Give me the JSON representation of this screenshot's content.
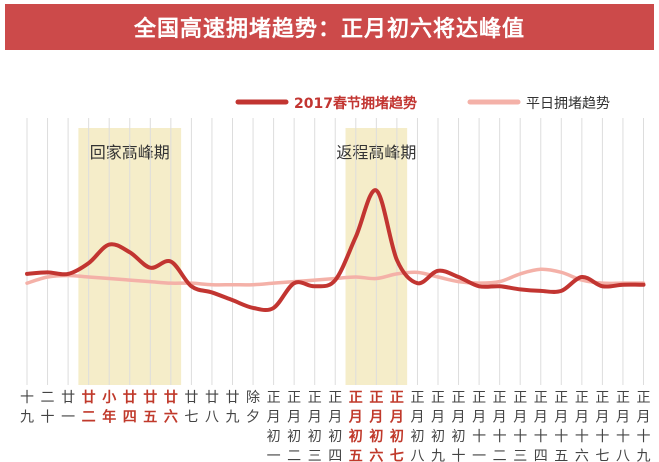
{
  "title": "全国高速拥堵趋势：正月初六将达峰值",
  "colors": {
    "title_bg": "#cc4a4a",
    "series_2017": "#c23531",
    "series_normal": "#f4b1a8",
    "highlight_band": "#f5edc9",
    "highlight_tick": "#c0392b",
    "grid": "#dddddd"
  },
  "chart_data": {
    "type": "line",
    "title": "全国高速拥堵趋势：正月初六将达峰值",
    "xlabel": "",
    "ylabel": "",
    "grid": "vertical",
    "legend_position": "top-right",
    "categories": [
      {
        "lines": [
          "十",
          "九",
          ""
        ],
        "highlight": false
      },
      {
        "lines": [
          "二",
          "十",
          ""
        ],
        "highlight": false
      },
      {
        "lines": [
          "廿",
          "一",
          ""
        ],
        "highlight": false
      },
      {
        "lines": [
          "廿",
          "二",
          ""
        ],
        "highlight": true
      },
      {
        "lines": [
          "小",
          "年",
          ""
        ],
        "highlight": true
      },
      {
        "lines": [
          "廿",
          "四",
          ""
        ],
        "highlight": true
      },
      {
        "lines": [
          "廿",
          "五",
          ""
        ],
        "highlight": true
      },
      {
        "lines": [
          "廿",
          "六",
          ""
        ],
        "highlight": true
      },
      {
        "lines": [
          "廿",
          "七",
          ""
        ],
        "highlight": false
      },
      {
        "lines": [
          "廿",
          "八",
          ""
        ],
        "highlight": false
      },
      {
        "lines": [
          "廿",
          "九",
          ""
        ],
        "highlight": false
      },
      {
        "lines": [
          "除",
          "夕",
          ""
        ],
        "highlight": false
      },
      {
        "lines": [
          "正",
          "月",
          "初",
          "一"
        ],
        "highlight": false
      },
      {
        "lines": [
          "正",
          "月",
          "初",
          "二"
        ],
        "highlight": false
      },
      {
        "lines": [
          "正",
          "月",
          "初",
          "三"
        ],
        "highlight": false
      },
      {
        "lines": [
          "正",
          "月",
          "初",
          "四"
        ],
        "highlight": false
      },
      {
        "lines": [
          "正",
          "月",
          "初",
          "五"
        ],
        "highlight": true
      },
      {
        "lines": [
          "正",
          "月",
          "初",
          "六"
        ],
        "highlight": true
      },
      {
        "lines": [
          "正",
          "月",
          "初",
          "七"
        ],
        "highlight": true
      },
      {
        "lines": [
          "正",
          "月",
          "初",
          "八"
        ],
        "highlight": false
      },
      {
        "lines": [
          "正",
          "月",
          "初",
          "九"
        ],
        "highlight": false
      },
      {
        "lines": [
          "正",
          "月",
          "初",
          "十"
        ],
        "highlight": false
      },
      {
        "lines": [
          "正",
          "月",
          "十",
          "一"
        ],
        "highlight": false
      },
      {
        "lines": [
          "正",
          "月",
          "十",
          "二"
        ],
        "highlight": false
      },
      {
        "lines": [
          "正",
          "月",
          "十",
          "三"
        ],
        "highlight": false
      },
      {
        "lines": [
          "正",
          "月",
          "十",
          "四"
        ],
        "highlight": false
      },
      {
        "lines": [
          "正",
          "月",
          "十",
          "五"
        ],
        "highlight": false
      },
      {
        "lines": [
          "正",
          "月",
          "十",
          "六"
        ],
        "highlight": false
      },
      {
        "lines": [
          "正",
          "月",
          "十",
          "七"
        ],
        "highlight": false
      },
      {
        "lines": [
          "正",
          "月",
          "十",
          "八"
        ],
        "highlight": false
      },
      {
        "lines": [
          "正",
          "月",
          "十",
          "九"
        ],
        "highlight": false
      }
    ],
    "bands": [
      {
        "label": "回家高峰期",
        "from": 3,
        "to": 7
      },
      {
        "label": "返程高峰期",
        "from": 16,
        "to": 18
      }
    ],
    "series": [
      {
        "name": "2017春节拥堵趋势",
        "color": "#c23531",
        "values": [
          46,
          47,
          46,
          53,
          65,
          60,
          50,
          54,
          38,
          34,
          29,
          24,
          24,
          40,
          38,
          42,
          70,
          100,
          55,
          40,
          48,
          44,
          38,
          38,
          36,
          35,
          35,
          44,
          38,
          39,
          39
        ]
      },
      {
        "name": "平日拥堵趋势",
        "color": "#f4b1a8",
        "values": [
          40,
          44,
          45,
          44,
          43,
          42,
          41,
          40,
          40,
          39,
          39,
          39,
          40,
          41,
          42,
          43,
          44,
          43,
          46,
          47,
          44,
          41,
          40,
          41,
          46,
          49,
          47,
          42,
          40,
          40,
          40
        ]
      }
    ],
    "ylim": [
      0,
      110
    ]
  }
}
